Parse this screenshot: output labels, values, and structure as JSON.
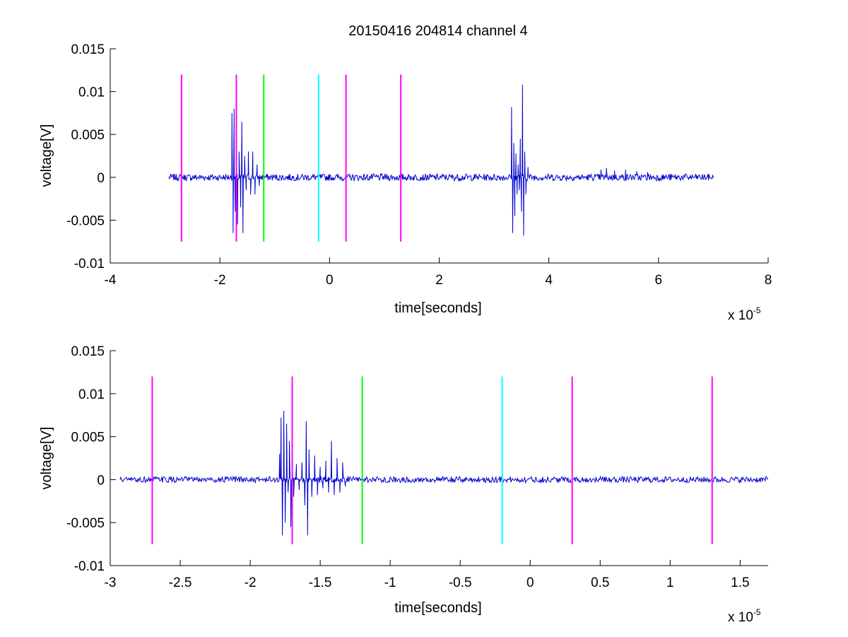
{
  "figure": {
    "title": "20150416 204814 channel 4"
  },
  "chart_data": [
    {
      "type": "line",
      "title": "20150416 204814 channel 4",
      "xlabel": "time[seconds]",
      "ylabel": "voltage[V]",
      "x_exponent_base": "x 10",
      "x_exponent": "-5",
      "xlim": [
        -4,
        8
      ],
      "ylim": [
        -0.01,
        0.015
      ],
      "xticks": [
        -4,
        -2,
        0,
        2,
        4,
        6,
        8
      ],
      "xtick_labels": [
        "-4",
        "-2",
        "0",
        "2",
        "4",
        "6",
        "8"
      ],
      "yticks": [
        -0.01,
        -0.005,
        0,
        0.005,
        0.01,
        0.015
      ],
      "ytick_labels": [
        "-0.01",
        "-0.005",
        "0",
        "0.005",
        "0.01",
        "0.015"
      ],
      "grid": false,
      "series": [
        {
          "color": "#0000cc",
          "x_range": [
            -2.93,
            7.0
          ],
          "noise_amplitude": 0.0004,
          "bursts": [
            {
              "x": [
                -1.78,
                -1.76,
                -1.74,
                -1.72,
                -1.7,
                -1.68,
                -1.65,
                -1.62,
                -1.6,
                -1.58,
                -1.55,
                -1.52,
                -1.48,
                -1.44,
                -1.4,
                -1.36,
                -1.32,
                -1.28
              ],
              "y": [
                0.0075,
                -0.0065,
                0.008,
                -0.004,
                0.006,
                -0.0055,
                0.003,
                -0.0035,
                0.0065,
                -0.0065,
                0.0025,
                -0.0015,
                0.003,
                -0.002,
                0.003,
                -0.002,
                0.0015,
                -0.001
              ]
            },
            {
              "x": [
                3.32,
                3.34,
                3.36,
                3.38,
                3.4,
                3.42,
                3.44,
                3.46,
                3.48,
                3.5,
                3.52,
                3.54,
                3.56,
                3.58,
                3.62
              ],
              "y": [
                0.0082,
                -0.0065,
                0.004,
                -0.0045,
                0.0028,
                -0.002,
                0.0015,
                -0.0015,
                0.0045,
                -0.004,
                0.0108,
                -0.0068,
                0.003,
                -0.002,
                0.0012
              ]
            },
            {
              "x": [
                4.95,
                5.05,
                5.2,
                5.4,
                5.6,
                5.8
              ],
              "y": [
                0.0009,
                0.0011,
                0.0008,
                0.0009,
                0.0007,
                0.0006
              ]
            }
          ]
        }
      ],
      "markers": [
        {
          "x": -2.7,
          "color": "#ff00ff",
          "y_range": [
            -0.0075,
            0.012
          ]
        },
        {
          "x": -1.7,
          "color": "#ff00ff",
          "y_range": [
            -0.0075,
            0.012
          ]
        },
        {
          "x": -1.2,
          "color": "#00ff00",
          "y_range": [
            -0.0075,
            0.012
          ]
        },
        {
          "x": -0.2,
          "color": "#00ffff",
          "y_range": [
            -0.0075,
            0.012
          ]
        },
        {
          "x": 0.3,
          "color": "#ff00ff",
          "y_range": [
            -0.0075,
            0.012
          ]
        },
        {
          "x": 1.3,
          "color": "#ff00ff",
          "y_range": [
            -0.0075,
            0.012
          ]
        }
      ]
    },
    {
      "type": "line",
      "xlabel": "time[seconds]",
      "ylabel": "voltage[V]",
      "x_exponent_base": "x 10",
      "x_exponent": "-5",
      "xlim": [
        -3.0,
        1.7
      ],
      "ylim": [
        -0.01,
        0.015
      ],
      "xticks": [
        -3,
        -2.5,
        -2,
        -1.5,
        -1,
        -0.5,
        0,
        0.5,
        1,
        1.5
      ],
      "xtick_labels": [
        "-3",
        "-2.5",
        "-2",
        "-1.5",
        "-1",
        "-0.5",
        "0",
        "0.5",
        "1",
        "1.5"
      ],
      "yticks": [
        -0.01,
        -0.005,
        0,
        0.005,
        0.01,
        0.015
      ],
      "ytick_labels": [
        "-0.01",
        "-0.005",
        "0",
        "0.005",
        "0.01",
        "0.015"
      ],
      "grid": false,
      "series": [
        {
          "color": "#0000cc",
          "x_range": [
            -2.93,
            1.7
          ],
          "noise_amplitude": 0.00035,
          "bursts": [
            {
              "x": [
                -1.79,
                -1.78,
                -1.77,
                -1.76,
                -1.75,
                -1.74,
                -1.73,
                -1.72,
                -1.71,
                -1.7,
                -1.69,
                -1.67,
                -1.65,
                -1.63,
                -1.61,
                -1.6,
                -1.59,
                -1.58,
                -1.56,
                -1.54,
                -1.52,
                -1.5,
                -1.48,
                -1.46,
                -1.44,
                -1.42,
                -1.4,
                -1.38,
                -1.36,
                -1.34,
                -1.32,
                -1.3
              ],
              "y": [
                0.003,
                0.0072,
                -0.0065,
                0.008,
                -0.005,
                0.0065,
                -0.0015,
                0.0045,
                -0.0055,
                0.0025,
                -0.002,
                0.0018,
                -0.0012,
                0.002,
                -0.003,
                0.0068,
                -0.0065,
                0.0035,
                -0.002,
                0.0028,
                -0.0018,
                0.0015,
                -0.001,
                0.0022,
                -0.0015,
                0.0045,
                -0.0018,
                0.0025,
                -0.0015,
                0.002,
                -0.0008,
                0.0004
              ]
            }
          ]
        }
      ],
      "markers": [
        {
          "x": -2.7,
          "color": "#ff00ff",
          "y_range": [
            -0.0075,
            0.012
          ]
        },
        {
          "x": -1.7,
          "color": "#ff00ff",
          "y_range": [
            -0.0075,
            0.012
          ]
        },
        {
          "x": -1.2,
          "color": "#00ff00",
          "y_range": [
            -0.0075,
            0.012
          ]
        },
        {
          "x": -0.2,
          "color": "#00ffff",
          "y_range": [
            -0.0075,
            0.012
          ]
        },
        {
          "x": 0.3,
          "color": "#ff00ff",
          "y_range": [
            -0.0075,
            0.012
          ]
        },
        {
          "x": 1.3,
          "color": "#ff00ff",
          "y_range": [
            -0.0075,
            0.012
          ]
        }
      ]
    }
  ]
}
